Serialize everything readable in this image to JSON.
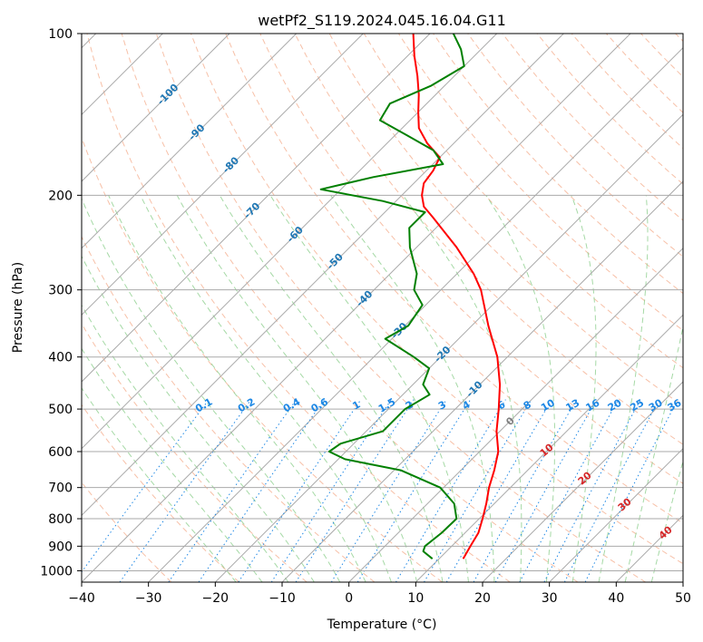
{
  "chart_data": {
    "type": "line",
    "title": "wetPf2_S119.2024.045.16.04.G11",
    "xlabel": "Temperature (°C)",
    "ylabel": "Pressure (hPa)",
    "xlim": [
      -40,
      50
    ],
    "ylim": [
      1050,
      100
    ],
    "y_scale": "log",
    "grid": true,
    "x_ticks": [
      -40,
      -30,
      -20,
      -10,
      0,
      10,
      20,
      30,
      40,
      50
    ],
    "x_tick_labels": [
      "−40",
      "−30",
      "−20",
      "−10",
      "0",
      "10",
      "20",
      "30",
      "40",
      "50"
    ],
    "y_ticks": [
      100,
      200,
      300,
      400,
      500,
      600,
      700,
      800,
      900,
      1000
    ],
    "y_tick_labels": [
      "100",
      "200",
      "300",
      "400",
      "500",
      "600",
      "700",
      "800",
      "900",
      "1000"
    ],
    "skew_deg": 45,
    "colors": {
      "temperature": "#ff0000",
      "dewpoint": "#008000",
      "isotherms": "#aaaaaa",
      "dry_adiabats": "#f4a582",
      "moist_adiabats": "#8fcf8f",
      "mixing_ratio": "#1e88e5",
      "isotherm_labels": "#1f77b4",
      "theta_labels": "#d62728",
      "theta_e_labels": "#7f7f7f"
    },
    "series": [
      {
        "key": "temperature",
        "points": [
          {
            "p": 950,
            "t": 13.6
          },
          {
            "p": 900,
            "t": 12.8
          },
          {
            "p": 850,
            "t": 12.0
          },
          {
            "p": 800,
            "t": 10.5
          },
          {
            "p": 750,
            "t": 8.8
          },
          {
            "p": 700,
            "t": 6.8
          },
          {
            "p": 650,
            "t": 5.0
          },
          {
            "p": 600,
            "t": 2.8
          },
          {
            "p": 550,
            "t": -0.5
          },
          {
            "p": 500,
            "t": -3.5
          },
          {
            "p": 450,
            "t": -7.0
          },
          {
            "p": 400,
            "t": -11.5
          },
          {
            "p": 350,
            "t": -17.5
          },
          {
            "p": 300,
            "t": -24.0
          },
          {
            "p": 280,
            "t": -27.5
          },
          {
            "p": 250,
            "t": -34.0
          },
          {
            "p": 220,
            "t": -42.0
          },
          {
            "p": 210,
            "t": -45.0
          },
          {
            "p": 200,
            "t": -47.0
          },
          {
            "p": 190,
            "t": -48.5
          },
          {
            "p": 180,
            "t": -49.0
          },
          {
            "p": 170,
            "t": -50.0
          },
          {
            "p": 160,
            "t": -54.0
          },
          {
            "p": 150,
            "t": -57.5
          },
          {
            "p": 140,
            "t": -60.0
          },
          {
            "p": 130,
            "t": -62.5
          },
          {
            "p": 120,
            "t": -65.5
          },
          {
            "p": 110,
            "t": -69.0
          },
          {
            "p": 100,
            "t": -72.5
          }
        ]
      },
      {
        "key": "dewpoint",
        "points": [
          {
            "p": 950,
            "t": 9.0
          },
          {
            "p": 920,
            "t": 6.5
          },
          {
            "p": 900,
            "t": 6.0
          },
          {
            "p": 850,
            "t": 6.5
          },
          {
            "p": 800,
            "t": 6.6
          },
          {
            "p": 750,
            "t": 4.0
          },
          {
            "p": 700,
            "t": -0.5
          },
          {
            "p": 650,
            "t": -9.0
          },
          {
            "p": 620,
            "t": -19.0
          },
          {
            "p": 600,
            "t": -22.5
          },
          {
            "p": 580,
            "t": -22.0
          },
          {
            "p": 550,
            "t": -17.5
          },
          {
            "p": 500,
            "t": -17.5
          },
          {
            "p": 470,
            "t": -16.0
          },
          {
            "p": 450,
            "t": -18.5
          },
          {
            "p": 420,
            "t": -20.0
          },
          {
            "p": 400,
            "t": -24.0
          },
          {
            "p": 370,
            "t": -31.0
          },
          {
            "p": 350,
            "t": -29.5
          },
          {
            "p": 320,
            "t": -30.5
          },
          {
            "p": 300,
            "t": -34.0
          },
          {
            "p": 280,
            "t": -36.0
          },
          {
            "p": 250,
            "t": -41.0
          },
          {
            "p": 230,
            "t": -44.0
          },
          {
            "p": 215,
            "t": -44.0
          },
          {
            "p": 205,
            "t": -52.0
          },
          {
            "p": 195,
            "t": -63.0
          },
          {
            "p": 185,
            "t": -57.0
          },
          {
            "p": 175,
            "t": -48.5
          },
          {
            "p": 165,
            "t": -52.0
          },
          {
            "p": 155,
            "t": -58.0
          },
          {
            "p": 145,
            "t": -64.5
          },
          {
            "p": 135,
            "t": -65.5
          },
          {
            "p": 125,
            "t": -62.0
          },
          {
            "p": 115,
            "t": -60.0
          },
          {
            "p": 107,
            "t": -63.0
          },
          {
            "p": 100,
            "t": -66.5
          }
        ]
      }
    ],
    "isotherm_labels": [
      "-100",
      "-90",
      "-80",
      "-70",
      "-60",
      "-50",
      "-40",
      "-30",
      "-20",
      "-10"
    ],
    "isotherm_label_values": [
      -100,
      -90,
      -80,
      -70,
      -60,
      -50,
      -40,
      -30,
      -20,
      -10
    ],
    "mixing_ratio_labels": [
      "0.1",
      "0.2",
      "0.4",
      "0.6",
      "1",
      "1.5",
      "2",
      "3",
      "4",
      "6",
      "8",
      "10",
      "13",
      "16",
      "20",
      "25",
      "30",
      "36"
    ],
    "mixing_ratio_values": [
      0.1,
      0.2,
      0.4,
      0.6,
      1,
      1.5,
      2,
      3,
      4,
      6,
      8,
      10,
      13,
      16,
      20,
      25,
      30,
      36
    ],
    "theta_e_labels": [
      "0"
    ],
    "theta_labels": [
      "10",
      "20",
      "30",
      "40"
    ]
  }
}
